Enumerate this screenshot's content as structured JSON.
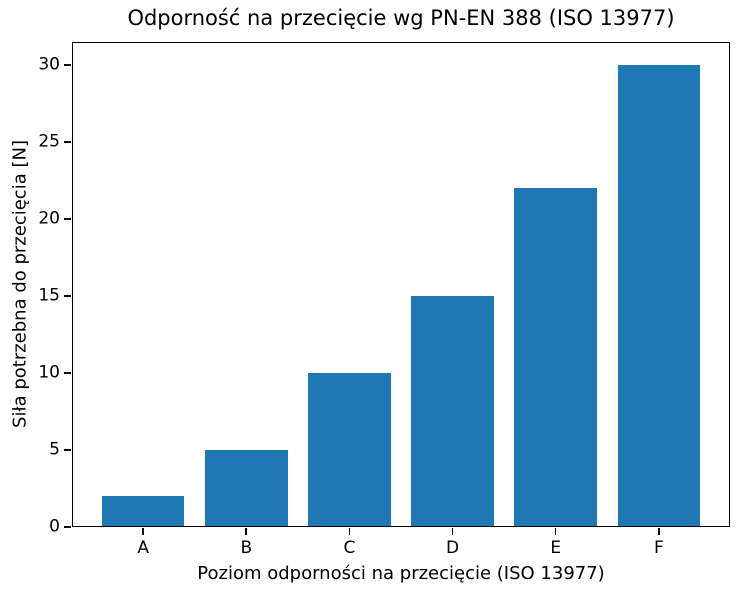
{
  "figure": {
    "background": "#ffffff",
    "text_color": "#000000"
  },
  "chart_data": {
    "type": "bar",
    "title": "Odporność na przecięcie wg PN-EN 388 (ISO 13977)",
    "xlabel": "Poziom odporności na przecięcie (ISO 13977)",
    "ylabel": "Siła potrzebna do przecięcia [N]",
    "categories": [
      "A",
      "B",
      "C",
      "D",
      "E",
      "F"
    ],
    "values": [
      2,
      5,
      10,
      15,
      22,
      30
    ],
    "yticks": [
      0,
      5,
      10,
      15,
      20,
      25,
      30
    ],
    "ylim": [
      0,
      31.5
    ],
    "xlim": [
      -0.69,
      5.69
    ],
    "bar_width": 0.8,
    "bar_color": "#1f77b4",
    "grid": false,
    "legend": "none",
    "spines": "box"
  }
}
